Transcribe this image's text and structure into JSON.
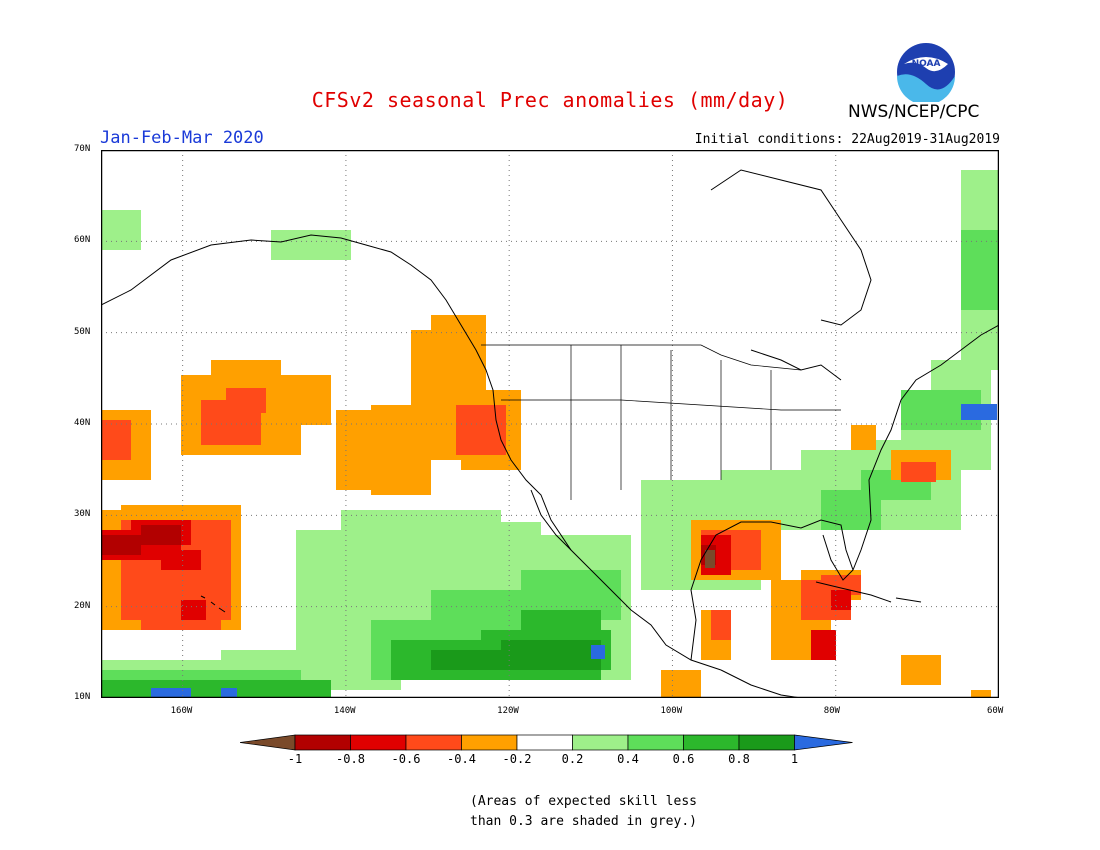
{
  "title": "CFSv2 seasonal Prec anomalies (mm/day)",
  "agency": "NWS/NCEP/CPC",
  "logo_text": "NOAA",
  "season": "Jan-Feb-Mar 2020",
  "initial_conditions": "Initial conditions: 22Aug2019-31Aug2019",
  "lat_labels": [
    "70N",
    "60N",
    "50N",
    "40N",
    "30N",
    "20N",
    "10N"
  ],
  "lon_labels": [
    "160W",
    "140W",
    "120W",
    "100W",
    "80W",
    "60W"
  ],
  "colorbar": {
    "labels": [
      "-1",
      "-0.8",
      "-0.6",
      "-0.4",
      "-0.2",
      "0.2",
      "0.4",
      "0.6",
      "0.8",
      "1"
    ],
    "colors": [
      "#7a4a2a",
      "#b20000",
      "#e00000",
      "#ff4a1a",
      "#ffa000",
      "#ffffff",
      "#9ef08a",
      "#5ede5a",
      "#2cb82c",
      "#1a9a1a",
      "#2a6ae0"
    ]
  },
  "note_lines": [
    "(Areas of expected skill less",
    "than 0.3 are shaded in grey.)"
  ]
}
